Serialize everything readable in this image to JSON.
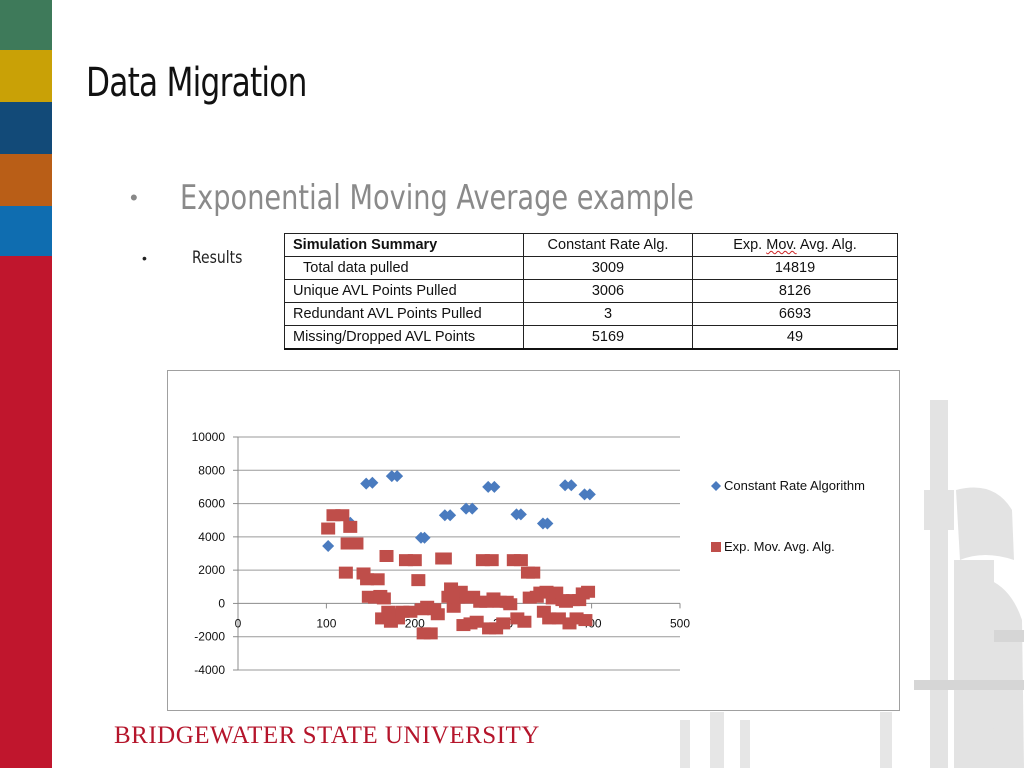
{
  "slide": {
    "title": "Data Migration",
    "bullet": "Exponential Moving Average example",
    "sub_bullet": "Results",
    "footer": "BRIDGEWATER STATE UNIVERSITY"
  },
  "colors": {
    "stripe": [
      "#3e7a5a",
      "#c9a106",
      "#124a78",
      "#b95e17",
      "#0f6db0",
      "#c0162d"
    ],
    "series_constant": "#4a7bbf",
    "series_ema": "#bf4e4a",
    "brand_red": "#b5152b"
  },
  "table": {
    "headers": [
      "Simulation Summary",
      "Constant Rate Alg.",
      "Exp. Mov. Avg. Alg."
    ],
    "rows": [
      [
        "Total data pulled",
        "3009",
        "14819"
      ],
      [
        "Unique AVL Points Pulled",
        "3006",
        "8126"
      ],
      [
        "Redundant AVL Points Pulled",
        "3",
        "6693"
      ],
      [
        "Missing/Dropped AVL Points",
        "5169",
        "49"
      ]
    ]
  },
  "chart_data": {
    "type": "scatter",
    "xlim": [
      0,
      500
    ],
    "ylim": [
      -4000,
      10000
    ],
    "x_ticks": [
      0,
      100,
      200,
      300,
      400,
      500
    ],
    "y_ticks": [
      10000,
      8000,
      6000,
      4000,
      2000,
      0,
      -2000,
      -4000
    ],
    "grid": "horizontal",
    "legend": "right",
    "series": [
      {
        "name": "Constant Rate Algorithm",
        "marker": "diamond",
        "points": [
          [
            102,
            3450
          ],
          [
            127,
            4850
          ],
          [
            145,
            7200
          ],
          [
            152,
            7250
          ],
          [
            174,
            7650
          ],
          [
            180,
            7650
          ],
          [
            207,
            3950
          ],
          [
            211,
            3950
          ],
          [
            234,
            5300
          ],
          [
            240,
            5300
          ],
          [
            258,
            5700
          ],
          [
            265,
            5700
          ],
          [
            283,
            7000
          ],
          [
            290,
            7000
          ],
          [
            315,
            5350
          ],
          [
            320,
            5350
          ],
          [
            345,
            4800
          ],
          [
            350,
            4800
          ],
          [
            370,
            7100
          ],
          [
            377,
            7100
          ],
          [
            392,
            6550
          ],
          [
            398,
            6550
          ]
        ]
      },
      {
        "name": "Exp. Mov. Avg. Alg.",
        "marker": "square",
        "points": [
          [
            102,
            4500
          ],
          [
            108,
            5300
          ],
          [
            118,
            5300
          ],
          [
            122,
            1850
          ],
          [
            124,
            3600
          ],
          [
            127,
            4600
          ],
          [
            134,
            3600
          ],
          [
            142,
            1800
          ],
          [
            146,
            1450
          ],
          [
            148,
            400
          ],
          [
            155,
            350
          ],
          [
            158,
            1450
          ],
          [
            161,
            450
          ],
          [
            163,
            -900
          ],
          [
            165,
            300
          ],
          [
            168,
            2850
          ],
          [
            170,
            -500
          ],
          [
            173,
            -1100
          ],
          [
            178,
            -650
          ],
          [
            181,
            -900
          ],
          [
            186,
            -500
          ],
          [
            190,
            2600
          ],
          [
            195,
            -500
          ],
          [
            200,
            2600
          ],
          [
            204,
            1400
          ],
          [
            208,
            -350
          ],
          [
            210,
            -1800
          ],
          [
            214,
            -200
          ],
          [
            218,
            -1800
          ],
          [
            222,
            -350
          ],
          [
            226,
            -650
          ],
          [
            231,
            2700
          ],
          [
            234,
            2700
          ],
          [
            238,
            400
          ],
          [
            241,
            900
          ],
          [
            244,
            -200
          ],
          [
            249,
            350
          ],
          [
            252,
            700
          ],
          [
            255,
            -1300
          ],
          [
            259,
            350
          ],
          [
            263,
            -1200
          ],
          [
            266,
            400
          ],
          [
            270,
            -1100
          ],
          [
            274,
            100
          ],
          [
            277,
            2600
          ],
          [
            281,
            100
          ],
          [
            284,
            -1500
          ],
          [
            287,
            2600
          ],
          [
            289,
            300
          ],
          [
            292,
            -1500
          ],
          [
            296,
            100
          ],
          [
            300,
            -1200
          ],
          [
            304,
            100
          ],
          [
            308,
            -50
          ],
          [
            312,
            2600
          ],
          [
            316,
            -900
          ],
          [
            320,
            2600
          ],
          [
            324,
            -1100
          ],
          [
            328,
            1850
          ],
          [
            330,
            350
          ],
          [
            334,
            1850
          ],
          [
            338,
            400
          ],
          [
            342,
            650
          ],
          [
            346,
            -500
          ],
          [
            349,
            700
          ],
          [
            352,
            -900
          ],
          [
            356,
            300
          ],
          [
            360,
            650
          ],
          [
            363,
            -900
          ],
          [
            367,
            200
          ],
          [
            371,
            100
          ],
          [
            375,
            -1200
          ],
          [
            379,
            200
          ],
          [
            383,
            -900
          ],
          [
            386,
            200
          ],
          [
            390,
            600
          ],
          [
            393,
            -1000
          ],
          [
            396,
            700
          ]
        ]
      }
    ]
  }
}
